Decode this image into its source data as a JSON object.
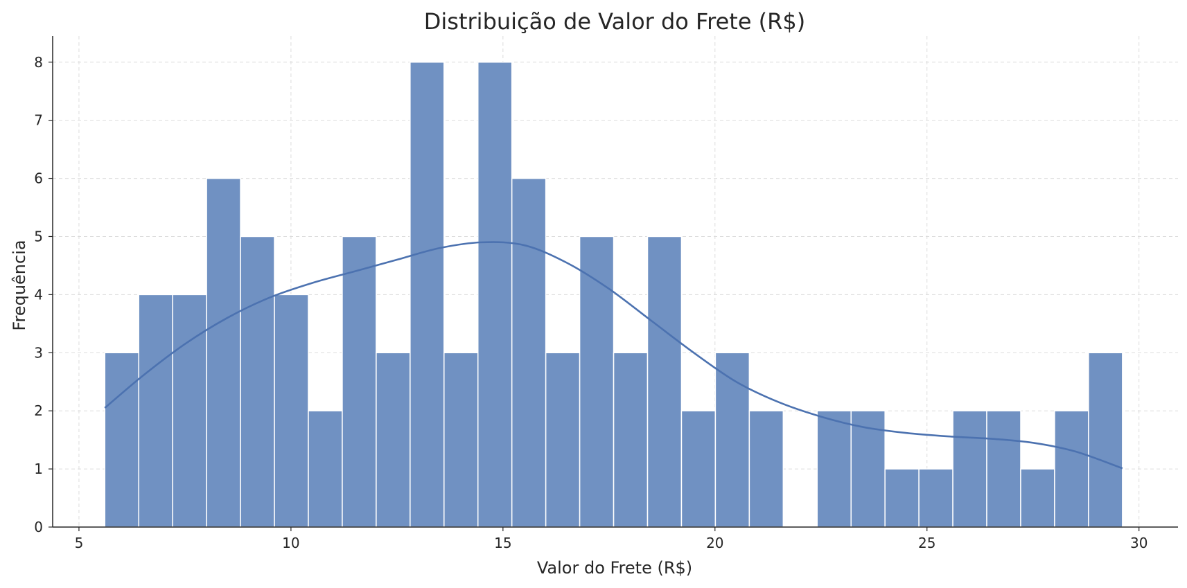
{
  "chart_data": {
    "type": "bar",
    "subtype": "histogram-with-kde",
    "title": "Distribuição de Valor do Frete (R$)",
    "xlabel": "Valor do Frete (R$)",
    "ylabel": "Frequência",
    "xlim": [
      4.38,
      30.92
    ],
    "ylim": [
      0,
      8.45
    ],
    "xticks": [
      5,
      10,
      15,
      20,
      25,
      30
    ],
    "yticks": [
      0,
      1,
      2,
      3,
      4,
      5,
      6,
      7,
      8
    ],
    "grid": true,
    "legend": "none",
    "colors": {
      "bar": "#7091c2",
      "kde": "#4c72b0"
    },
    "bins": [
      {
        "x0": 5.61,
        "x1": 6.41,
        "count": 3
      },
      {
        "x0": 6.41,
        "x1": 7.21,
        "count": 4
      },
      {
        "x0": 7.21,
        "x1": 8.01,
        "count": 4
      },
      {
        "x0": 8.01,
        "x1": 8.81,
        "count": 6
      },
      {
        "x0": 8.81,
        "x1": 9.61,
        "count": 5
      },
      {
        "x0": 9.61,
        "x1": 10.41,
        "count": 4
      },
      {
        "x0": 10.41,
        "x1": 11.21,
        "count": 2
      },
      {
        "x0": 11.21,
        "x1": 12.01,
        "count": 5
      },
      {
        "x0": 12.01,
        "x1": 12.81,
        "count": 3
      },
      {
        "x0": 12.81,
        "x1": 13.61,
        "count": 8
      },
      {
        "x0": 13.61,
        "x1": 14.41,
        "count": 3
      },
      {
        "x0": 14.41,
        "x1": 15.21,
        "count": 8
      },
      {
        "x0": 15.21,
        "x1": 16.01,
        "count": 6
      },
      {
        "x0": 16.01,
        "x1": 16.81,
        "count": 3
      },
      {
        "x0": 16.81,
        "x1": 17.61,
        "count": 5
      },
      {
        "x0": 17.61,
        "x1": 18.41,
        "count": 3
      },
      {
        "x0": 18.41,
        "x1": 19.21,
        "count": 5
      },
      {
        "x0": 19.21,
        "x1": 20.01,
        "count": 2
      },
      {
        "x0": 20.01,
        "x1": 20.81,
        "count": 3
      },
      {
        "x0": 20.81,
        "x1": 21.61,
        "count": 2
      },
      {
        "x0": 21.61,
        "x1": 22.41,
        "count": 0
      },
      {
        "x0": 22.41,
        "x1": 23.21,
        "count": 2
      },
      {
        "x0": 23.21,
        "x1": 24.01,
        "count": 2
      },
      {
        "x0": 24.01,
        "x1": 24.81,
        "count": 1
      },
      {
        "x0": 24.81,
        "x1": 25.61,
        "count": 1
      },
      {
        "x0": 25.61,
        "x1": 26.41,
        "count": 2
      },
      {
        "x0": 26.41,
        "x1": 27.21,
        "count": 2
      },
      {
        "x0": 27.21,
        "x1": 28.01,
        "count": 1
      },
      {
        "x0": 28.01,
        "x1": 28.81,
        "count": 2
      },
      {
        "x0": 28.81,
        "x1": 29.61,
        "count": 3
      }
    ],
    "kde": {
      "x": [
        5.61,
        6.5,
        7.5,
        8.5,
        9.5,
        10.5,
        11.5,
        12.5,
        13.5,
        14.5,
        15.5,
        16.5,
        17.5,
        18.5,
        19.5,
        20.5,
        21.5,
        22.5,
        23.5,
        24.5,
        25.5,
        26.5,
        27.5,
        28.5,
        29.61
      ],
      "y": [
        2.05,
        2.6,
        3.15,
        3.6,
        3.95,
        4.2,
        4.4,
        4.6,
        4.8,
        4.9,
        4.85,
        4.55,
        4.1,
        3.55,
        3.0,
        2.5,
        2.15,
        1.9,
        1.72,
        1.62,
        1.56,
        1.52,
        1.45,
        1.3,
        1.01
      ]
    }
  }
}
